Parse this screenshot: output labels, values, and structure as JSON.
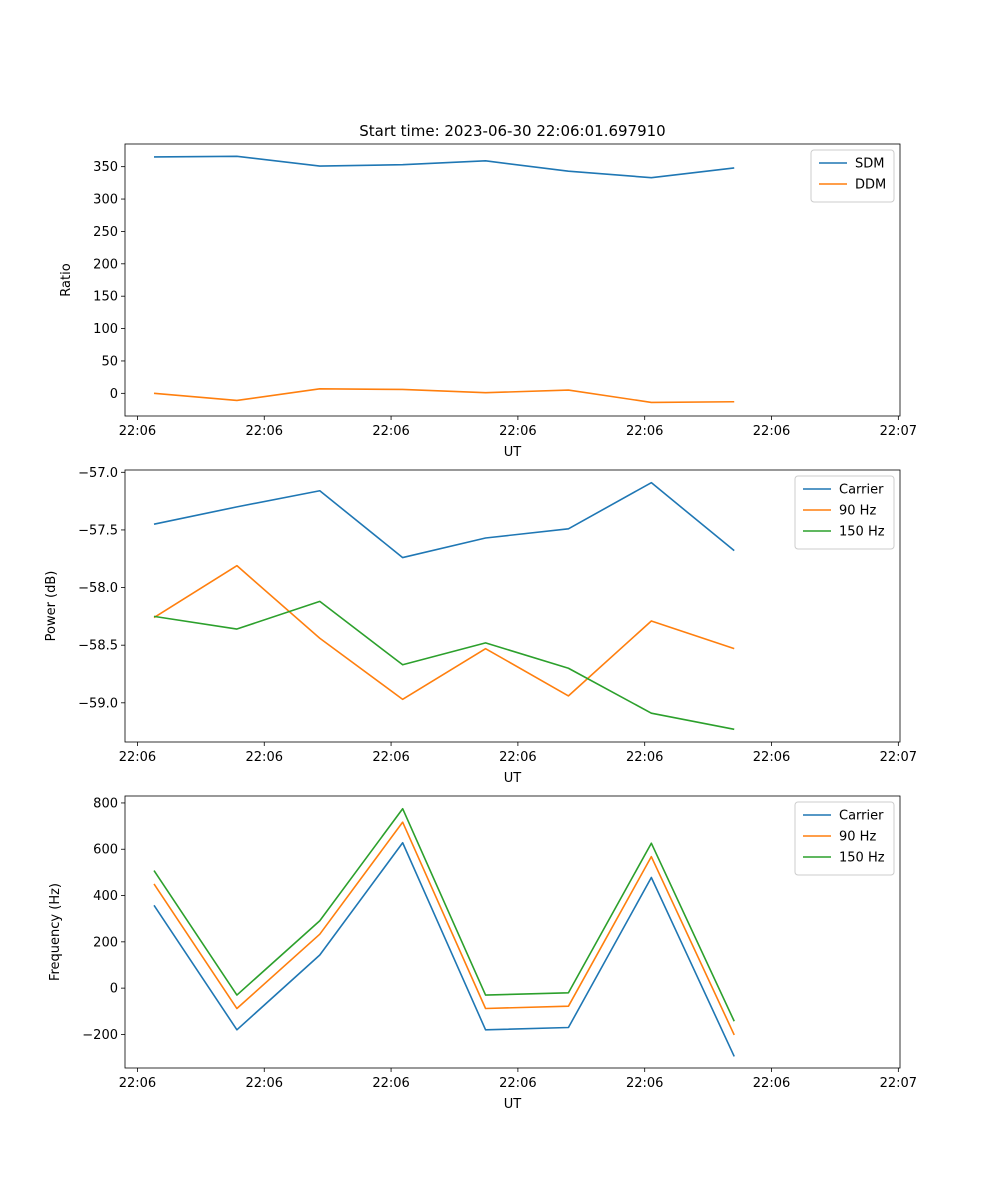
{
  "figure_title": "Start time: 2023-06-30 22:06:01.697910",
  "chart_data": [
    {
      "type": "line",
      "x": [
        0,
        1,
        2,
        3,
        4,
        5,
        6,
        7
      ],
      "xticks": [
        -0.2,
        1.33,
        2.86,
        4.39,
        5.92,
        7.45,
        8.98
      ],
      "xtick_labels": [
        "22:06",
        "22:06",
        "22:06",
        "22:06",
        "22:06",
        "22:06",
        "22:07"
      ],
      "xlim": [
        -0.35,
        9.0
      ],
      "xlabel": "UT",
      "ylabel": "Ratio",
      "ylim": [
        -35,
        385
      ],
      "yticks": [
        0,
        50,
        100,
        150,
        200,
        250,
        300,
        350
      ],
      "ytick_labels": [
        "0",
        "50",
        "100",
        "150",
        "200",
        "250",
        "300",
        "350"
      ],
      "legend_position": "top-right",
      "series": [
        {
          "name": "SDM",
          "color": "#1f77b4",
          "values": [
            365,
            366,
            351,
            353,
            359,
            343,
            333,
            348
          ]
        },
        {
          "name": "DDM",
          "color": "#ff7f0e",
          "values": [
            0,
            -11,
            7,
            6,
            1,
            5,
            -14,
            -13
          ]
        }
      ]
    },
    {
      "type": "line",
      "x": [
        0,
        1,
        2,
        3,
        4,
        5,
        6,
        7
      ],
      "xticks": [
        -0.2,
        1.33,
        2.86,
        4.39,
        5.92,
        7.45,
        8.98
      ],
      "xtick_labels": [
        "22:06",
        "22:06",
        "22:06",
        "22:06",
        "22:06",
        "22:06",
        "22:07"
      ],
      "xlim": [
        -0.35,
        9.0
      ],
      "xlabel": "UT",
      "ylabel": "Power (dB)",
      "ylim": [
        -59.34,
        -56.98
      ],
      "yticks": [
        -59.0,
        -58.5,
        -58.0,
        -57.5,
        -57.0
      ],
      "ytick_labels": [
        "−59.0",
        "−58.5",
        "−58.0",
        "−57.5",
        "−57.0"
      ],
      "legend_position": "top-right",
      "series": [
        {
          "name": "Carrier",
          "color": "#1f77b4",
          "values": [
            -57.45,
            -57.3,
            -57.16,
            -57.74,
            -57.57,
            -57.49,
            -57.09,
            -57.68
          ]
        },
        {
          "name": "90 Hz",
          "color": "#ff7f0e",
          "values": [
            -58.26,
            -57.81,
            -58.44,
            -58.97,
            -58.53,
            -58.94,
            -58.29,
            -58.53
          ]
        },
        {
          "name": "150 Hz",
          "color": "#2ca02c",
          "values": [
            -58.25,
            -58.36,
            -58.12,
            -58.67,
            -58.48,
            -58.7,
            -59.09,
            -59.23
          ]
        }
      ]
    },
    {
      "type": "line",
      "x": [
        0,
        1,
        2,
        3,
        4,
        5,
        6,
        7
      ],
      "xticks": [
        -0.2,
        1.33,
        2.86,
        4.39,
        5.92,
        7.45,
        8.98
      ],
      "xtick_labels": [
        "22:06",
        "22:06",
        "22:06",
        "22:06",
        "22:06",
        "22:06",
        "22:07"
      ],
      "xlim": [
        -0.35,
        9.0
      ],
      "xlabel": "UT",
      "ylabel": "Frequency (Hz)",
      "ylim": [
        -345,
        830
      ],
      "yticks": [
        -200,
        0,
        200,
        400,
        600,
        800
      ],
      "ytick_labels": [
        "−200",
        "0",
        "200",
        "400",
        "600",
        "800"
      ],
      "legend_position": "top-right",
      "series": [
        {
          "name": "Carrier",
          "color": "#1f77b4",
          "values": [
            358,
            -180,
            143,
            628,
            -180,
            -170,
            478,
            -295
          ]
        },
        {
          "name": "90 Hz",
          "color": "#ff7f0e",
          "values": [
            450,
            -88,
            233,
            717,
            -88,
            -78,
            568,
            -202
          ]
        },
        {
          "name": "150 Hz",
          "color": "#2ca02c",
          "values": [
            508,
            -30,
            291,
            775,
            -30,
            -20,
            626,
            -143
          ]
        }
      ]
    }
  ]
}
